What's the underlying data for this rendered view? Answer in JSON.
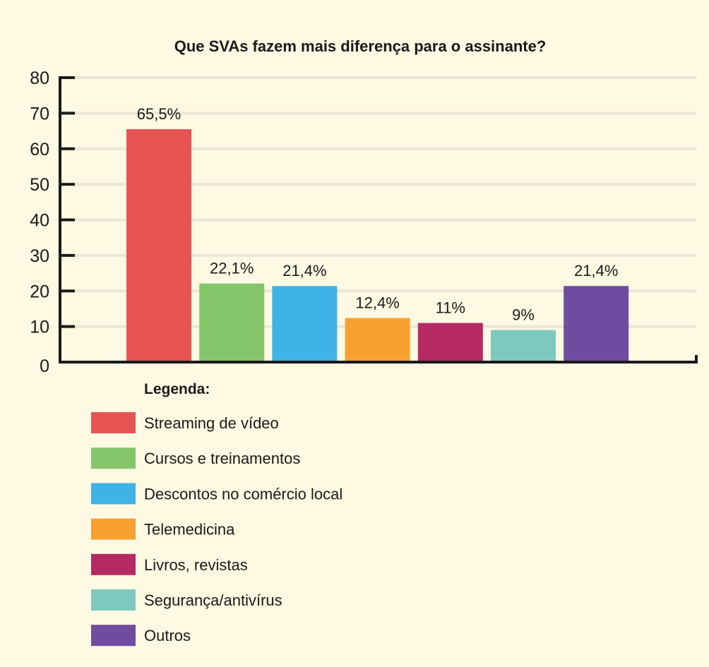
{
  "chart_data": {
    "type": "bar",
    "title": "Que SVAs fazem mais diferença para o assinante?",
    "xlabel": "",
    "ylabel": "",
    "ylim": [
      0,
      80
    ],
    "yticks": [
      "0",
      "10",
      "20",
      "30",
      "40",
      "50",
      "60",
      "70",
      "80"
    ],
    "grid": true,
    "legend_position": "bottom-left",
    "legend_title": "Legenda:",
    "categories": [
      "Streaming de vídeo",
      "Cursos e treinamentos",
      "Descontos no comércio local",
      "Telemedicina",
      "Livros, revistas",
      "Segurança/antivírus",
      "Outros"
    ],
    "values": [
      65.5,
      22.1,
      21.4,
      12.4,
      11,
      9,
      21.4
    ],
    "labels": [
      "65,5%",
      "22,1%",
      "21,4%",
      "12,4%",
      "11%",
      "9%",
      "21,4%"
    ],
    "colors": [
      "#e85454",
      "#85c66b",
      "#40b3e6",
      "#f8a132",
      "#b52a63",
      "#7dc9be",
      "#6f4c9f"
    ]
  }
}
